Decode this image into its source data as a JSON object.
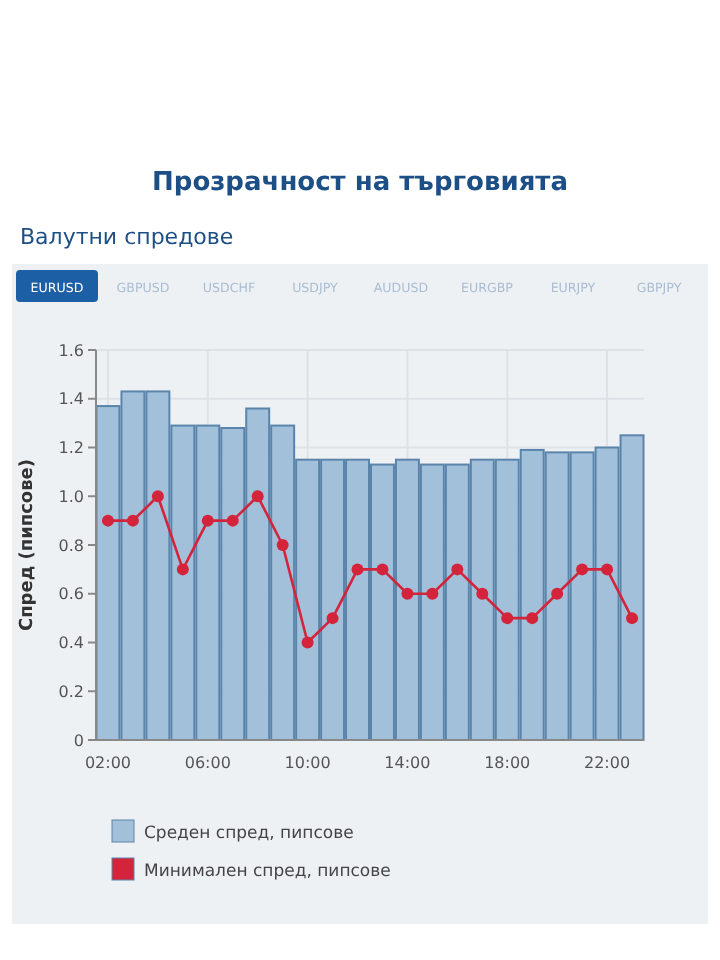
{
  "chart_data": {
    "type": "bar",
    "title": "Прозрачност на търговията",
    "subtitle": "Валутни спредове",
    "annotations": [
      "EURUSD",
      "GBPUSD",
      "USDCHF",
      "USDJPY",
      "AUDUSD",
      "EURGBP",
      "EURJPY",
      "GBPJPY"
    ],
    "ylabel": "Спред (пипсове)",
    "categories": [
      "02:00",
      null,
      null,
      null,
      "06:00",
      null,
      null,
      null,
      "10:00",
      null,
      null,
      null,
      "14:00",
      null,
      null,
      null,
      "18:00",
      null,
      null,
      null,
      "22:00",
      null
    ],
    "series": [
      {
        "name": "Среден спред, пипсове",
        "color": "#a3c0db",
        "values": [
          1.37,
          1.43,
          1.43,
          1.29,
          1.29,
          1.28,
          1.36,
          1.29,
          1.15,
          1.15,
          1.15,
          1.13,
          1.15,
          1.13,
          1.13,
          1.15,
          1.15,
          1.19,
          1.18,
          1.18,
          1.2,
          1.25
        ]
      },
      {
        "name": "Минимален спред, пипсове",
        "type": "line",
        "color": "#d4243c",
        "values": [
          0.9,
          0.9,
          1.0,
          0.7,
          0.9,
          0.9,
          1.0,
          0.8,
          0.4,
          0.5,
          0.7,
          0.7,
          0.6,
          0.6,
          0.7,
          0.6,
          0.5,
          0.5,
          0.6,
          0.7,
          0.7,
          0.5
        ]
      }
    ],
    "ylim": [
      0,
      1.6
    ],
    "yticks": [
      0,
      {
        "value": 0.2,
        "label": "0.2"
      },
      {
        "value": 0.4,
        "label": "0.4"
      },
      {
        "value": 0.6,
        "label": "0.6"
      },
      {
        "value": 0.8,
        "label": "0.8"
      },
      {
        "value": 1,
        "label": "1.0"
      },
      {
        "value": 1.2,
        "label": "1.2"
      },
      {
        "value": 1.4,
        "label": "1.4"
      },
      {
        "value": 1.6,
        "label": "1.6"
      }
    ],
    "grid": true,
    "legend": "bottom",
    "marker": "circle",
    "line_style": "solid"
  }
}
